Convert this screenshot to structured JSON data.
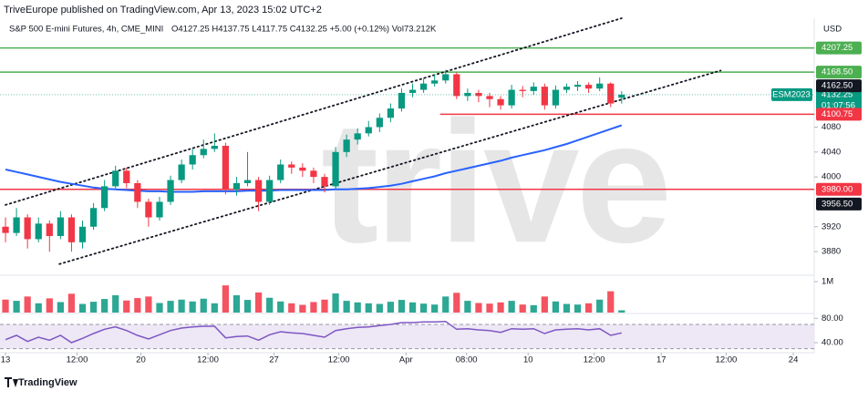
{
  "header": {
    "published": "TriveEurope published on TradingView.com, Apr 13, 2023 15:02 UTC+2",
    "symbol": "S&P 500 E-mini Futures, 4h, CME_MINI",
    "ohlc": "O4127.25 H4137.75 L4117.75 C4132.25 +5.00 (+0.12%) Vol73.212K",
    "currency": "USD",
    "watermark": "trive",
    "footer": "TradingView"
  },
  "chart_data": {
    "type": "candlestick",
    "xlim": [
      -0.5,
      73.5
    ],
    "xticks": [
      {
        "value": 0,
        "label": "13"
      },
      {
        "value": 6.5,
        "label": "12:00"
      },
      {
        "value": 12.3,
        "label": "20"
      },
      {
        "value": 18.4,
        "label": "12:00"
      },
      {
        "value": 24.4,
        "label": "27"
      },
      {
        "value": 30.3,
        "label": "12:00"
      },
      {
        "value": 36.4,
        "label": "Apr"
      },
      {
        "value": 41.9,
        "label": "08:00"
      },
      {
        "value": 47.5,
        "label": "10"
      },
      {
        "value": 53.5,
        "label": "12:00"
      },
      {
        "value": 59.6,
        "label": "17"
      },
      {
        "value": 65.5,
        "label": "12:00"
      },
      {
        "value": 71.6,
        "label": "24"
      }
    ],
    "ylim": [
      3845,
      4255
    ],
    "yticks": [
      3880,
      3920,
      4000,
      4040,
      4080
    ],
    "up_color": "#089981",
    "down_color": "#f23645",
    "open": [
      3920,
      3910,
      3935,
      3900,
      3925,
      3905,
      3935,
      3895,
      3920,
      3950,
      3985,
      4010,
      3990,
      3960,
      3935,
      3960,
      3995,
      4020,
      4035,
      4045,
      4050,
      3980,
      3990,
      3995,
      3960,
      3995,
      4020,
      4015,
      4010,
      4000,
      3985,
      4040,
      4060,
      4070,
      4080,
      4095,
      4110,
      4135,
      4140,
      4150,
      4155,
      4165,
      4130,
      4135,
      4130,
      4125,
      4115,
      4140,
      4138,
      4145,
      4115,
      4140,
      4145,
      4148,
      4142,
      4150,
      4127.25
    ],
    "high": [
      3935,
      3950,
      3940,
      3935,
      3930,
      3945,
      3940,
      3930,
      3958,
      3995,
      4018,
      4015,
      3995,
      3965,
      3968,
      4002,
      4028,
      4045,
      4060,
      4070,
      4055,
      4000,
      4040,
      4000,
      4002,
      4028,
      4025,
      4022,
      4015,
      4005,
      4048,
      4068,
      4078,
      4090,
      4102,
      4118,
      4142,
      4150,
      4158,
      4165,
      4172,
      4168,
      4142,
      4140,
      4135,
      4130,
      4148,
      4146,
      4152,
      4150,
      4147,
      4150,
      4154,
      4152,
      4160,
      4152,
      4137.75
    ],
    "low": [
      3895,
      3905,
      3885,
      3895,
      3880,
      3900,
      3880,
      3885,
      3915,
      3945,
      3980,
      3982,
      3950,
      3920,
      3930,
      3955,
      3990,
      4012,
      4030,
      4040,
      3972,
      3970,
      3985,
      3945,
      3955,
      3990,
      4005,
      4000,
      3990,
      3975,
      3980,
      4032,
      4052,
      4065,
      4072,
      4088,
      4105,
      4128,
      4135,
      4145,
      4150,
      4125,
      4122,
      4120,
      4112,
      4108,
      4110,
      4128,
      4132,
      4108,
      4110,
      4135,
      4138,
      4135,
      4138,
      4112,
      4117.75
    ],
    "close": [
      3910,
      3935,
      3900,
      3925,
      3905,
      3935,
      3895,
      3920,
      3950,
      3985,
      4010,
      3990,
      3960,
      3935,
      3960,
      3995,
      4020,
      4035,
      4045,
      4050,
      3980,
      3990,
      3995,
      3960,
      3995,
      4020,
      4015,
      4010,
      4000,
      3985,
      4040,
      4060,
      4070,
      4080,
      4095,
      4110,
      4135,
      4140,
      4150,
      4155,
      4165,
      4130,
      4135,
      4130,
      4125,
      4115,
      4140,
      4138,
      4145,
      4115,
      4140,
      4145,
      4148,
      4142,
      4150,
      4118,
      4132.25
    ],
    "moving_average": {
      "color": "#2962ff",
      "values": [
        4012,
        4008,
        4004,
        4000,
        3996,
        3992,
        3989,
        3986,
        3983,
        3981,
        3980,
        3979,
        3978,
        3977,
        3977,
        3976,
        3976,
        3976,
        3977,
        3977,
        3977,
        3977,
        3978,
        3978,
        3978,
        3979,
        3979,
        3979,
        3979,
        3979,
        3980,
        3980,
        3981,
        3982,
        3984,
        3986,
        3989,
        3993,
        3997,
        4001,
        4006,
        4010,
        4014,
        4018,
        4022,
        4026,
        4031,
        4035,
        4039,
        4043,
        4048,
        4053,
        4059,
        4065,
        4071,
        4077,
        4083
      ]
    },
    "trend_lines": [
      {
        "x": [
          0,
          56
        ],
        "y": [
          3955,
          4255
        ]
      },
      {
        "x": [
          4.9,
          65
        ],
        "y": [
          3860,
          4171
        ]
      }
    ],
    "levels": [
      {
        "value": 4207.25,
        "label": "4207.25",
        "color": "#4caf50"
      },
      {
        "value": 4168.5,
        "label": "4168.50",
        "color": "#4caf50"
      },
      {
        "value": 4100.75,
        "label": "4100.75",
        "color": "#f23645",
        "from": 39.5
      },
      {
        "value": 3980,
        "label": "3980.00",
        "color": "#f23645"
      }
    ],
    "price_tags": [
      {
        "value": 4162.5,
        "label": "4162.50",
        "color": "#131722"
      },
      {
        "value": 3956.5,
        "label": "3956.50",
        "color": "#131722"
      }
    ],
    "last_price": {
      "value": 4132.25,
      "label": "4132.25",
      "symbol": "ESM2023",
      "countdown": "01:07:56",
      "color": "#089981"
    },
    "volume": {
      "ylim": [
        0,
        1150000
      ],
      "yticks": [
        {
          "value": 1000000,
          "label": "1M"
        }
      ],
      "values": [
        420000,
        380000,
        520000,
        300000,
        460000,
        340000,
        610000,
        280000,
        350000,
        440000,
        560000,
        390000,
        470000,
        520000,
        310000,
        380000,
        420000,
        360000,
        450000,
        300000,
        880000,
        560000,
        410000,
        650000,
        480000,
        360000,
        300000,
        250000,
        340000,
        420000,
        620000,
        380000,
        330000,
        300000,
        280000,
        350000,
        410000,
        330000,
        290000,
        260000,
        520000,
        640000,
        380000,
        310000,
        290000,
        330000,
        380000,
        260000,
        240000,
        520000,
        360000,
        280000,
        260000,
        300000,
        420000,
        690000,
        73212
      ]
    },
    "rsi": {
      "color": "#7e57c2",
      "band_color": "#ede7f6",
      "ylim": [
        25,
        85
      ],
      "yticks": [
        {
          "value": 40,
          "label": "40.00"
        },
        {
          "value": 80,
          "label": "80.00"
        }
      ],
      "bands": [
        30,
        70
      ],
      "values": [
        45,
        52,
        42,
        49,
        44,
        52,
        40,
        47,
        55,
        62,
        66,
        60,
        52,
        46,
        53,
        60,
        64,
        66,
        67,
        67,
        48,
        50,
        51,
        44,
        53,
        58,
        56,
        55,
        52,
        49,
        60,
        63,
        65,
        66,
        68,
        70,
        73,
        73,
        74,
        74,
        75,
        62,
        63,
        61,
        60,
        57,
        63,
        62,
        63,
        55,
        61,
        62,
        63,
        61,
        63,
        52,
        56
      ]
    }
  }
}
